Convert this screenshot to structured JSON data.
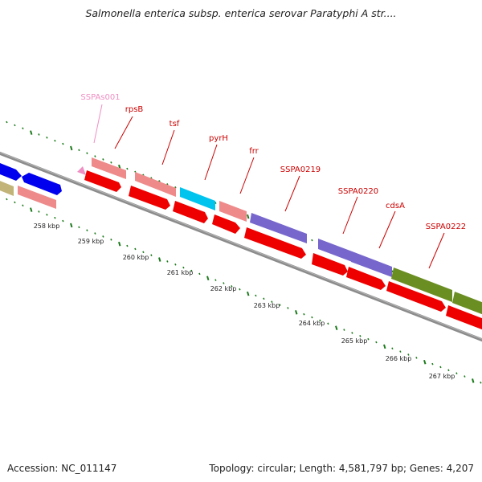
{
  "title": "Salmonella enterica subsp. enterica serovar Paratyphi A str....",
  "footer": {
    "accession": "Accession: NC_011147",
    "topology": "Topology: circular; Length: 4,581,797 bp; Genes: 4,207"
  },
  "axis": {
    "ticks": [
      "258 kbp",
      "259 kbp",
      "260 kbp",
      "261 kbp",
      "262 kbp",
      "263 kbp",
      "264 kbp",
      "265 kbp",
      "266 kbp",
      "267 kbp"
    ]
  },
  "genes": [
    {
      "label": "SSPAs001",
      "color": "#ef8fc3"
    },
    {
      "label": "rpsB",
      "color": "#cc0000"
    },
    {
      "label": "tsf",
      "color": "#cc0000"
    },
    {
      "label": "pyrH",
      "color": "#cc0000"
    },
    {
      "label": "frr",
      "color": "#cc0000"
    },
    {
      "label": "SSPA0219",
      "color": "#cc0000"
    },
    {
      "label": "SSPA0220",
      "color": "#cc0000"
    },
    {
      "label": "cdsA",
      "color": "#cc0000"
    },
    {
      "label": "SSPA0222",
      "color": "#cc0000"
    }
  ],
  "colors": {
    "backbone": "#8c8c8c",
    "tick": "#1a7a1a",
    "cds_red": "#ee0000",
    "pink": "#ee8a8a",
    "blue": "#0000ee",
    "cyan": "#00c4ee",
    "purple": "#7766cc",
    "olive": "#6b8e23",
    "tan": "#c2b478"
  }
}
